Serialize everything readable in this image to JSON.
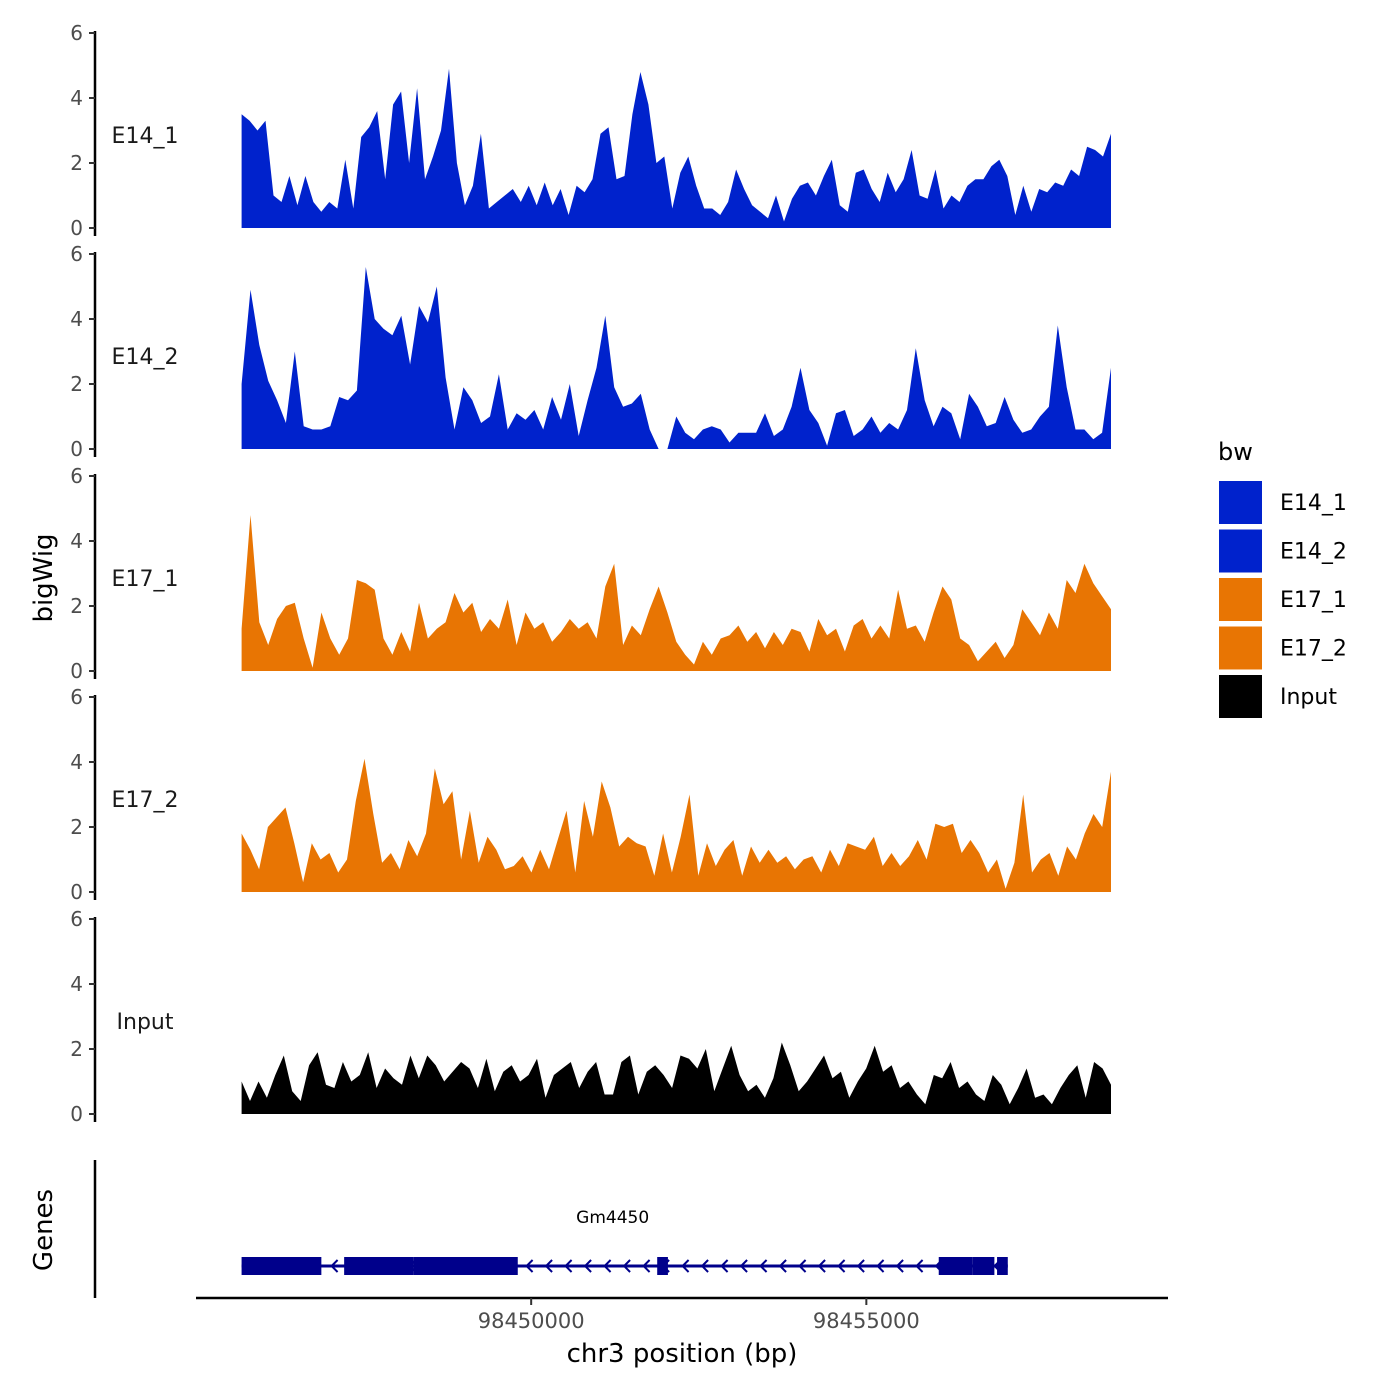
{
  "chart_data": {
    "type": "area",
    "ylabel": "bigWig",
    "xlabel": "chr3 position (bp)",
    "genes_label": "Genes",
    "ylim": [
      0,
      6
    ],
    "y_ticks": [
      "0",
      "2",
      "4",
      "6"
    ],
    "x_ticks": [
      {
        "value": 98450000,
        "label": "98450000"
      },
      {
        "value": 98455000,
        "label": "98455000"
      }
    ],
    "x_range": [
      98445000,
      98459500
    ],
    "data_range": [
      98445680,
      98458650
    ],
    "legend": {
      "title": "bw",
      "position": "right",
      "entries": [
        {
          "name": "E14_1",
          "color": "#0022CC"
        },
        {
          "name": "E14_2",
          "color": "#0022CC"
        },
        {
          "name": "E17_1",
          "color": "#E87503"
        },
        {
          "name": "E17_2",
          "color": "#E87503"
        },
        {
          "name": "Input",
          "color": "#000000"
        }
      ]
    },
    "tracks": [
      {
        "name": "E14_1",
        "color": "#0022CC",
        "values": [
          3.5,
          3.3,
          3.0,
          3.3,
          1.0,
          0.8,
          1.6,
          0.7,
          1.6,
          0.8,
          0.5,
          0.8,
          0.6,
          2.1,
          0.6,
          2.8,
          3.1,
          3.6,
          1.5,
          3.8,
          4.2,
          2.0,
          4.3,
          1.5,
          2.2,
          3.0,
          4.9,
          2.0,
          0.7,
          1.3,
          2.9,
          0.6,
          0.8,
          1.0,
          1.2,
          0.8,
          1.3,
          0.7,
          1.4,
          0.7,
          1.2,
          0.4,
          1.3,
          1.1,
          1.5,
          2.9,
          3.1,
          1.5,
          1.6,
          3.5,
          4.8,
          3.8,
          2.0,
          2.2,
          0.6,
          1.7,
          2.2,
          1.3,
          0.6,
          0.6,
          0.4,
          0.8,
          1.8,
          1.2,
          0.7,
          0.5,
          0.3,
          1.0,
          0.2,
          0.9,
          1.3,
          1.4,
          1.0,
          1.6,
          2.1,
          0.7,
          0.5,
          1.7,
          1.8,
          1.2,
          0.8,
          1.7,
          1.1,
          1.5,
          2.4,
          1.0,
          0.9,
          1.8,
          0.6,
          1.0,
          0.8,
          1.3,
          1.5,
          1.5,
          1.9,
          2.1,
          1.6,
          0.4,
          1.3,
          0.5,
          1.2,
          1.1,
          1.4,
          1.3,
          1.8,
          1.6,
          2.5,
          2.4,
          2.2,
          2.9
        ]
      },
      {
        "name": "E14_2",
        "color": "#0022CC",
        "values": [
          2.0,
          4.9,
          3.2,
          2.1,
          1.5,
          0.8,
          3.0,
          0.7,
          0.6,
          0.6,
          0.7,
          1.6,
          1.5,
          1.8,
          5.6,
          4.0,
          3.7,
          3.5,
          4.1,
          2.6,
          4.4,
          3.9,
          5.0,
          2.2,
          0.6,
          1.9,
          1.5,
          0.8,
          1.0,
          2.3,
          0.6,
          1.1,
          0.9,
          1.2,
          0.6,
          1.6,
          0.9,
          2.0,
          0.4,
          1.5,
          2.5,
          4.1,
          1.9,
          1.3,
          1.4,
          1.7,
          0.6,
          0.0,
          0.0,
          1.0,
          0.5,
          0.3,
          0.6,
          0.7,
          0.6,
          0.2,
          0.5,
          0.5,
          0.5,
          1.1,
          0.4,
          0.6,
          1.3,
          2.5,
          1.2,
          0.8,
          0.1,
          1.1,
          1.2,
          0.4,
          0.6,
          1.0,
          0.5,
          0.8,
          0.6,
          1.2,
          3.1,
          1.5,
          0.7,
          1.3,
          1.1,
          0.3,
          1.7,
          1.3,
          0.7,
          0.8,
          1.6,
          0.9,
          0.5,
          0.6,
          1.0,
          1.3,
          3.8,
          1.9,
          0.6,
          0.6,
          0.3,
          0.5,
          2.5
        ]
      },
      {
        "name": "E17_1",
        "color": "#E87503",
        "values": [
          1.3,
          4.8,
          1.5,
          0.8,
          1.6,
          2.0,
          2.1,
          1.0,
          0.1,
          1.8,
          1.0,
          0.5,
          1.0,
          2.8,
          2.7,
          2.5,
          1.0,
          0.5,
          1.2,
          0.6,
          2.1,
          1.0,
          1.3,
          1.5,
          2.4,
          1.8,
          2.1,
          1.2,
          1.6,
          1.3,
          2.2,
          0.8,
          1.8,
          1.3,
          1.5,
          0.9,
          1.2,
          1.6,
          1.3,
          1.5,
          1.0,
          2.6,
          3.3,
          0.8,
          1.4,
          1.1,
          1.9,
          2.6,
          1.8,
          0.9,
          0.5,
          0.2,
          0.9,
          0.5,
          1.0,
          1.1,
          1.4,
          0.9,
          1.2,
          0.7,
          1.2,
          0.8,
          1.3,
          1.2,
          0.6,
          1.6,
          1.1,
          1.3,
          0.6,
          1.4,
          1.6,
          1.0,
          1.4,
          1.0,
          2.5,
          1.3,
          1.4,
          0.9,
          1.8,
          2.6,
          2.2,
          1.0,
          0.8,
          0.3,
          0.6,
          0.9,
          0.4,
          0.8,
          1.9,
          1.5,
          1.1,
          1.8,
          1.3,
          2.8,
          2.4,
          3.3,
          2.7,
          2.3,
          1.9
        ]
      },
      {
        "name": "E17_2",
        "color": "#E87503",
        "values": [
          1.8,
          1.3,
          0.7,
          2.0,
          2.3,
          2.6,
          1.5,
          0.3,
          1.5,
          1.0,
          1.2,
          0.6,
          1.0,
          2.8,
          4.1,
          2.4,
          0.9,
          1.2,
          0.7,
          1.6,
          1.1,
          1.8,
          3.8,
          2.7,
          3.1,
          1.0,
          2.5,
          0.9,
          1.7,
          1.3,
          0.7,
          0.8,
          1.1,
          0.6,
          1.3,
          0.7,
          1.6,
          2.5,
          0.6,
          2.8,
          1.7,
          3.4,
          2.6,
          1.4,
          1.7,
          1.5,
          1.4,
          0.5,
          1.8,
          0.6,
          1.7,
          3.0,
          0.5,
          1.5,
          0.8,
          1.3,
          1.6,
          0.5,
          1.4,
          0.9,
          1.3,
          0.9,
          1.1,
          0.7,
          1.0,
          1.1,
          0.6,
          1.3,
          0.8,
          1.5,
          1.4,
          1.3,
          1.7,
          0.8,
          1.2,
          0.8,
          1.1,
          1.6,
          1.0,
          2.1,
          2.0,
          2.1,
          1.2,
          1.6,
          1.2,
          0.6,
          1.0,
          0.1,
          0.9,
          3.0,
          0.6,
          1.0,
          1.2,
          0.5,
          1.4,
          1.0,
          1.8,
          2.4,
          2.0,
          3.7
        ]
      },
      {
        "name": "Input",
        "color": "#000000",
        "values": [
          1.0,
          0.4,
          1.0,
          0.5,
          1.2,
          1.8,
          0.7,
          0.4,
          1.5,
          1.9,
          0.9,
          0.8,
          1.6,
          1.0,
          1.2,
          1.9,
          0.8,
          1.4,
          1.1,
          0.9,
          1.8,
          1.1,
          1.8,
          1.5,
          1.0,
          1.3,
          1.6,
          1.4,
          0.8,
          1.7,
          0.7,
          1.3,
          1.5,
          1.0,
          1.2,
          1.7,
          0.5,
          1.2,
          1.4,
          1.6,
          0.8,
          1.3,
          1.6,
          0.6,
          0.6,
          1.6,
          1.8,
          0.6,
          1.3,
          1.5,
          1.2,
          0.8,
          1.8,
          1.7,
          1.4,
          2.0,
          0.7,
          1.4,
          2.1,
          1.2,
          0.7,
          0.9,
          0.5,
          1.1,
          2.2,
          1.5,
          0.7,
          1.0,
          1.4,
          1.8,
          1.1,
          1.3,
          0.5,
          1.0,
          1.4,
          2.1,
          1.3,
          1.5,
          0.8,
          1.0,
          0.6,
          0.3,
          1.2,
          1.1,
          1.6,
          0.8,
          1.0,
          0.6,
          0.4,
          1.2,
          0.9,
          0.3,
          0.8,
          1.4,
          0.5,
          0.6,
          0.3,
          0.8,
          1.2,
          1.5,
          0.5,
          1.6,
          1.4,
          0.9
        ]
      }
    ],
    "gene": {
      "name": "Gm4450",
      "strand": "-",
      "start": 98445680,
      "end": 98457110,
      "exons": [
        [
          98445680,
          98446870
        ],
        [
          98447210,
          98448240
        ],
        [
          98448240,
          98449800
        ],
        [
          98451880,
          98452040
        ],
        [
          98456080,
          98456580
        ],
        [
          98456580,
          98456910
        ],
        [
          98456950,
          98457110
        ]
      ]
    }
  }
}
